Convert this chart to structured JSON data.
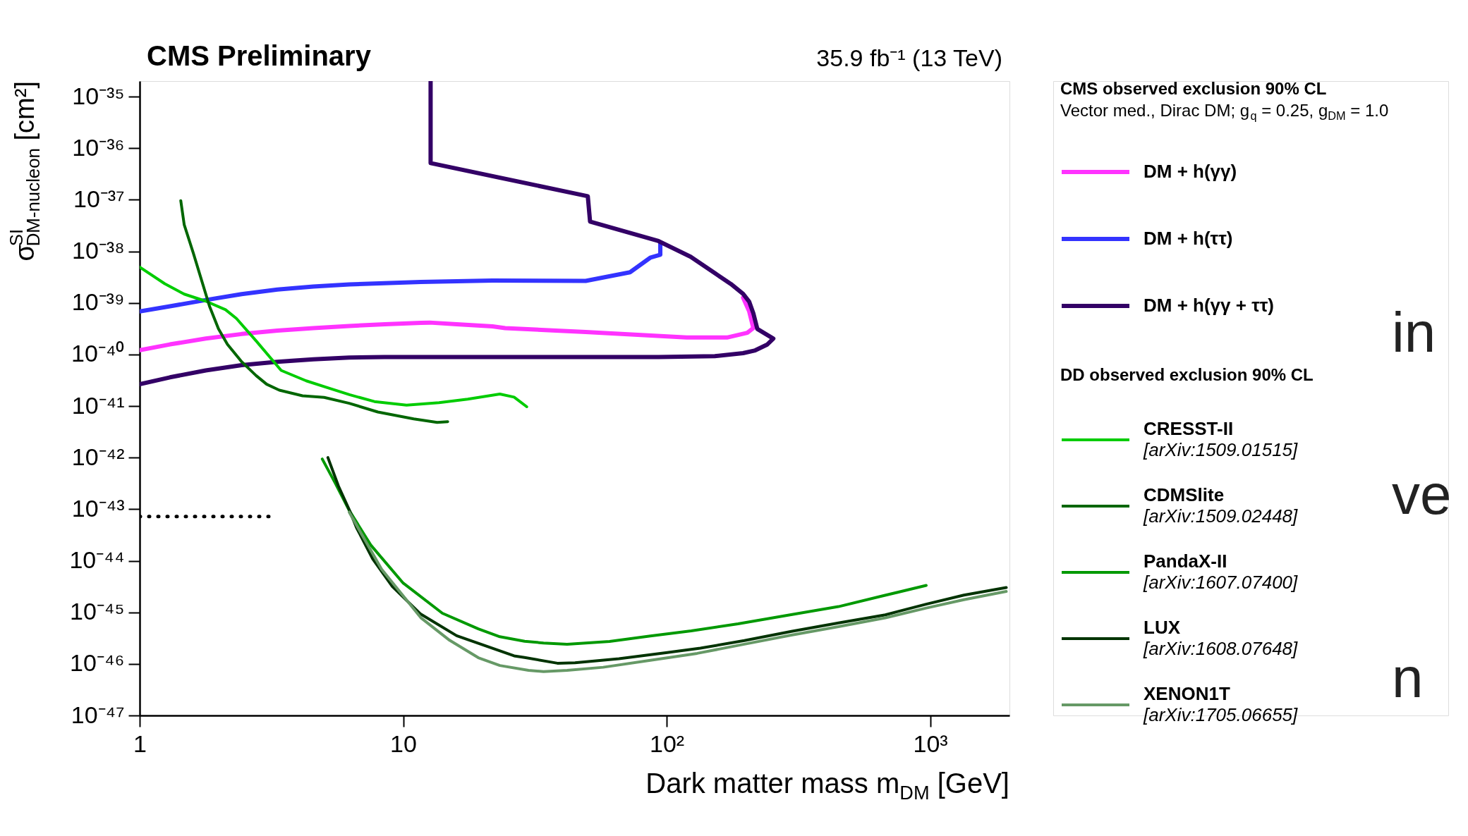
{
  "chart_data": {
    "type": "line",
    "title": "CMS Preliminary",
    "subtitle": "35.9 fb⁻¹ (13 TeV)",
    "xlabel": "Dark matter mass m$_{DM}$ [GeV]",
    "ylabel": "σ$^{SI}$$_{DM-nucleon}$ [cm²]",
    "legend_title": "CMS observed exclusion 90% CL",
    "annotations": [
      "Vector med., Dirac DM; g$_{q}$ = 0.25, g$_{DM}$ = 1.0",
      "DD observed exclusion 90% CL",
      "in",
      "ve",
      "n"
    ],
    "log": "xy",
    "xlim": [
      1,
      2000
    ],
    "ylim": [
      1e-47,
      2e-35
    ],
    "xticks": [
      1,
      10,
      {
        "value": 100,
        "label": "10²"
      },
      {
        "value": 1000,
        "label": "10³"
      }
    ],
    "yticks": [
      {
        "value": 1e-35,
        "label": "10⁻³⁵"
      },
      {
        "value": 1e-36,
        "label": "10⁻³⁶"
      },
      {
        "value": 1e-37,
        "label": "10⁻³⁷"
      },
      {
        "value": 1e-38,
        "label": "10⁻³⁸"
      },
      {
        "value": 1e-39,
        "label": "10⁻³⁹"
      },
      {
        "value": 1e-40,
        "label": "10⁻⁴⁰"
      },
      {
        "value": 1e-41,
        "label": "10⁻⁴¹"
      },
      {
        "value": 1e-42,
        "label": "10⁻⁴²"
      },
      {
        "value": 1e-43,
        "label": "10⁻⁴³"
      },
      {
        "value": 1e-44,
        "label": "10⁻⁴⁴"
      },
      {
        "value": 1e-45,
        "label": "10⁻⁴⁵"
      },
      {
        "value": 1e-46,
        "label": "10⁻⁴⁶"
      },
      {
        "value": 1e-47,
        "label": "10⁻⁴⁷"
      }
    ],
    "grid": false,
    "legend": "right",
    "marker": "none",
    "series": [
      {
        "name": "DM + h(γγ)",
        "color": "#ff33ff",
        "x": [
          1,
          1.303,
          1.782,
          2.438,
          3.334,
          4.56,
          6.237,
          8.53,
          11.67,
          12.62,
          15.96,
          21.83,
          24.38,
          49.3,
          119.1,
          169.4,
          202.3,
          213.3,
          205.6,
          195
        ],
        "values": [
          1.205e-40,
          1.567e-40,
          2.04e-40,
          2.49e-40,
          2.91e-40,
          3.24e-40,
          3.56e-40,
          3.85e-40,
          4.09e-40,
          4.15e-40,
          3.85e-40,
          3.5e-40,
          3.24e-40,
          2.72e-40,
          2.13e-40,
          2.13e-40,
          2.63e-40,
          3.24e-40,
          6.87e-40,
          1.26e-39
        ]
      },
      {
        "name": "DM + h(ττ)",
        "color": "#3333ff",
        "x": [
          1,
          1.303,
          1.782,
          2.438,
          3.334,
          4.56,
          6.237,
          11.67,
          15.96,
          21.83,
          49.3,
          72.6,
          86.9,
          94.6,
          94.6
        ],
        "values": [
          6.81e-40,
          8.59e-40,
          1.135e-39,
          1.48e-39,
          1.81e-39,
          2.07e-39,
          2.28e-39,
          2.54e-39,
          2.62e-39,
          2.7e-39,
          2.67e-39,
          3.92e-39,
          7.59e-39,
          8.57e-39,
          1.44e-38
        ]
      },
      {
        "name": "DM + h(γγ + ττ)",
        "color": "#330066",
        "x": [
          1,
          1.303,
          1.782,
          2.438,
          3.334,
          4.56,
          6.237,
          8.47,
          12.47,
          24.38,
          49.3,
          93.1,
          152.4,
          195,
          216.8,
          241,
          254,
          220.8,
          213.3,
          205.6,
          195,
          175.4,
          123.3,
          93.1,
          51.2,
          50.2,
          12.71,
          12.71
        ],
        "values": [
          2.64e-41,
          3.6e-41,
          4.91e-41,
          6.19e-41,
          7.23e-41,
          8.05e-41,
          8.71e-41,
          8.9e-41,
          8.93e-41,
          8.93e-41,
          8.93e-41,
          8.93e-41,
          9.27e-41,
          1.06e-40,
          1.2e-40,
          1.56e-40,
          2.03e-40,
          3.13e-40,
          6.28e-40,
          1.06e-39,
          1.5e-39,
          2.32e-39,
          7.85e-39,
          1.58e-38,
          3.77e-38,
          1.17e-37,
          5.13e-37,
          2e-35
        ]
      },
      {
        "name": "CRESST-II\n[arXiv:1509.01515]",
        "color": "#00cc00",
        "x": [
          1,
          1.245,
          1.476,
          1.782,
          2.118,
          2.328,
          2.767,
          3.443,
          4.285,
          5.176,
          6.252,
          7.78,
          10.3,
          13.68,
          17.58,
          23.28,
          26.36,
          29.44
        ],
        "values": [
          4.94e-39,
          2.35e-39,
          1.48e-39,
          1.08e-39,
          7.36e-40,
          5e-40,
          1.83e-40,
          4.9e-41,
          3.08e-41,
          2.26e-41,
          1.66e-41,
          1.22e-41,
          1.04e-41,
          1.16e-41,
          1.36e-41,
          1.71e-41,
          1.49e-41,
          9.7e-42
        ]
      },
      {
        "name": "CDMSlite\n[arXiv:1509.02448]",
        "color": "#006600",
        "x": [
          1.432,
          1.476,
          1.596,
          1.726,
          1.841,
          1.991,
          2.153,
          2.438,
          2.767,
          3.034,
          3.388,
          4.15,
          5.012,
          6.237,
          8.017,
          10.96,
          13.46,
          14.76
        ],
        "values": [
          9.6e-38,
          3.26e-38,
          9.46e-39,
          2.54e-39,
          8.6e-40,
          3.14e-40,
          1.57e-40,
          7.23e-41,
          3.89e-41,
          2.64e-41,
          2.03e-41,
          1.58e-41,
          1.47e-41,
          1.13e-41,
          7.66e-42,
          5.62e-42,
          4.82e-42,
          4.97e-42
        ]
      },
      {
        "name": "PandaX-II\n[arXiv:1607.07400]",
        "color": "#009900",
        "x": [
          4.93,
          5.51,
          6.24,
          7.53,
          10,
          14.09,
          19.28,
          23.28,
          28.9,
          34.1,
          41.9,
          60.7,
          86.7,
          123.9,
          186.6,
          281.2,
          448.7,
          657.6,
          966
        ],
        "values": [
          9.4e-43,
          3.28e-43,
          9.5e-44,
          2.02e-44,
          3.69e-45,
          9.6e-46,
          4.79e-46,
          3.36e-46,
          2.75e-46,
          2.54e-46,
          2.41e-46,
          2.72e-46,
          3.47e-46,
          4.37e-46,
          5.97e-46,
          8.59e-46,
          1.29e-45,
          2.07e-45,
          3.33e-45
        ]
      },
      {
        "name": "LUX\n[arXiv:1608.07648]",
        "color": "#003300",
        "x": [
          5.18,
          5.68,
          6.24,
          6.65,
          7.66,
          9.1,
          11.67,
          15.96,
          26.36,
          28.9,
          38.5,
          44.9,
          65.9,
          99.3,
          134.3,
          197.2,
          297.2,
          448.7,
          676.1,
          966,
          1343,
          1945
        ],
        "values": [
          1e-42,
          2.81e-43,
          9.8e-44,
          4.39e-44,
          1.09e-44,
          3.16e-45,
          9.2e-46,
          3.52e-46,
          1.43e-46,
          1.33e-46,
          1.03e-46,
          1.05e-46,
          1.26e-46,
          1.65e-46,
          2.02e-46,
          2.83e-46,
          4.26e-46,
          6.21e-46,
          8.95e-46,
          1.44e-45,
          2.16e-45,
          3.03e-45
        ]
      },
      {
        "name": "XENON1T\n[arXiv:1705.06655]",
        "color": "#669966",
        "x": [
          6.24,
          6.85,
          8.28,
          11.67,
          15,
          19.28,
          23.28,
          29.92,
          34.1,
          41.9,
          57.4,
          86.7,
          130.6,
          197.2,
          297.2,
          448.7,
          676.1,
          966,
          1343,
          1945
        ],
        "values": [
          8.8e-44,
          3.76e-44,
          6.85e-45,
          7.85e-46,
          2.87e-46,
          1.32e-46,
          9.3e-47,
          7.5e-47,
          7.1e-47,
          7.5e-47,
          8.6e-47,
          1.17e-46,
          1.6e-46,
          2.41e-46,
          3.61e-46,
          5.28e-46,
          7.82e-46,
          1.21e-45,
          1.76e-45,
          2.54e-45
        ]
      },
      {
        "color": "#000000",
        "line_style": "dotted",
        "x": [
          1,
          3.13
        ],
        "values": [
          7.2e-44,
          7.2e-44
        ]
      }
    ]
  }
}
